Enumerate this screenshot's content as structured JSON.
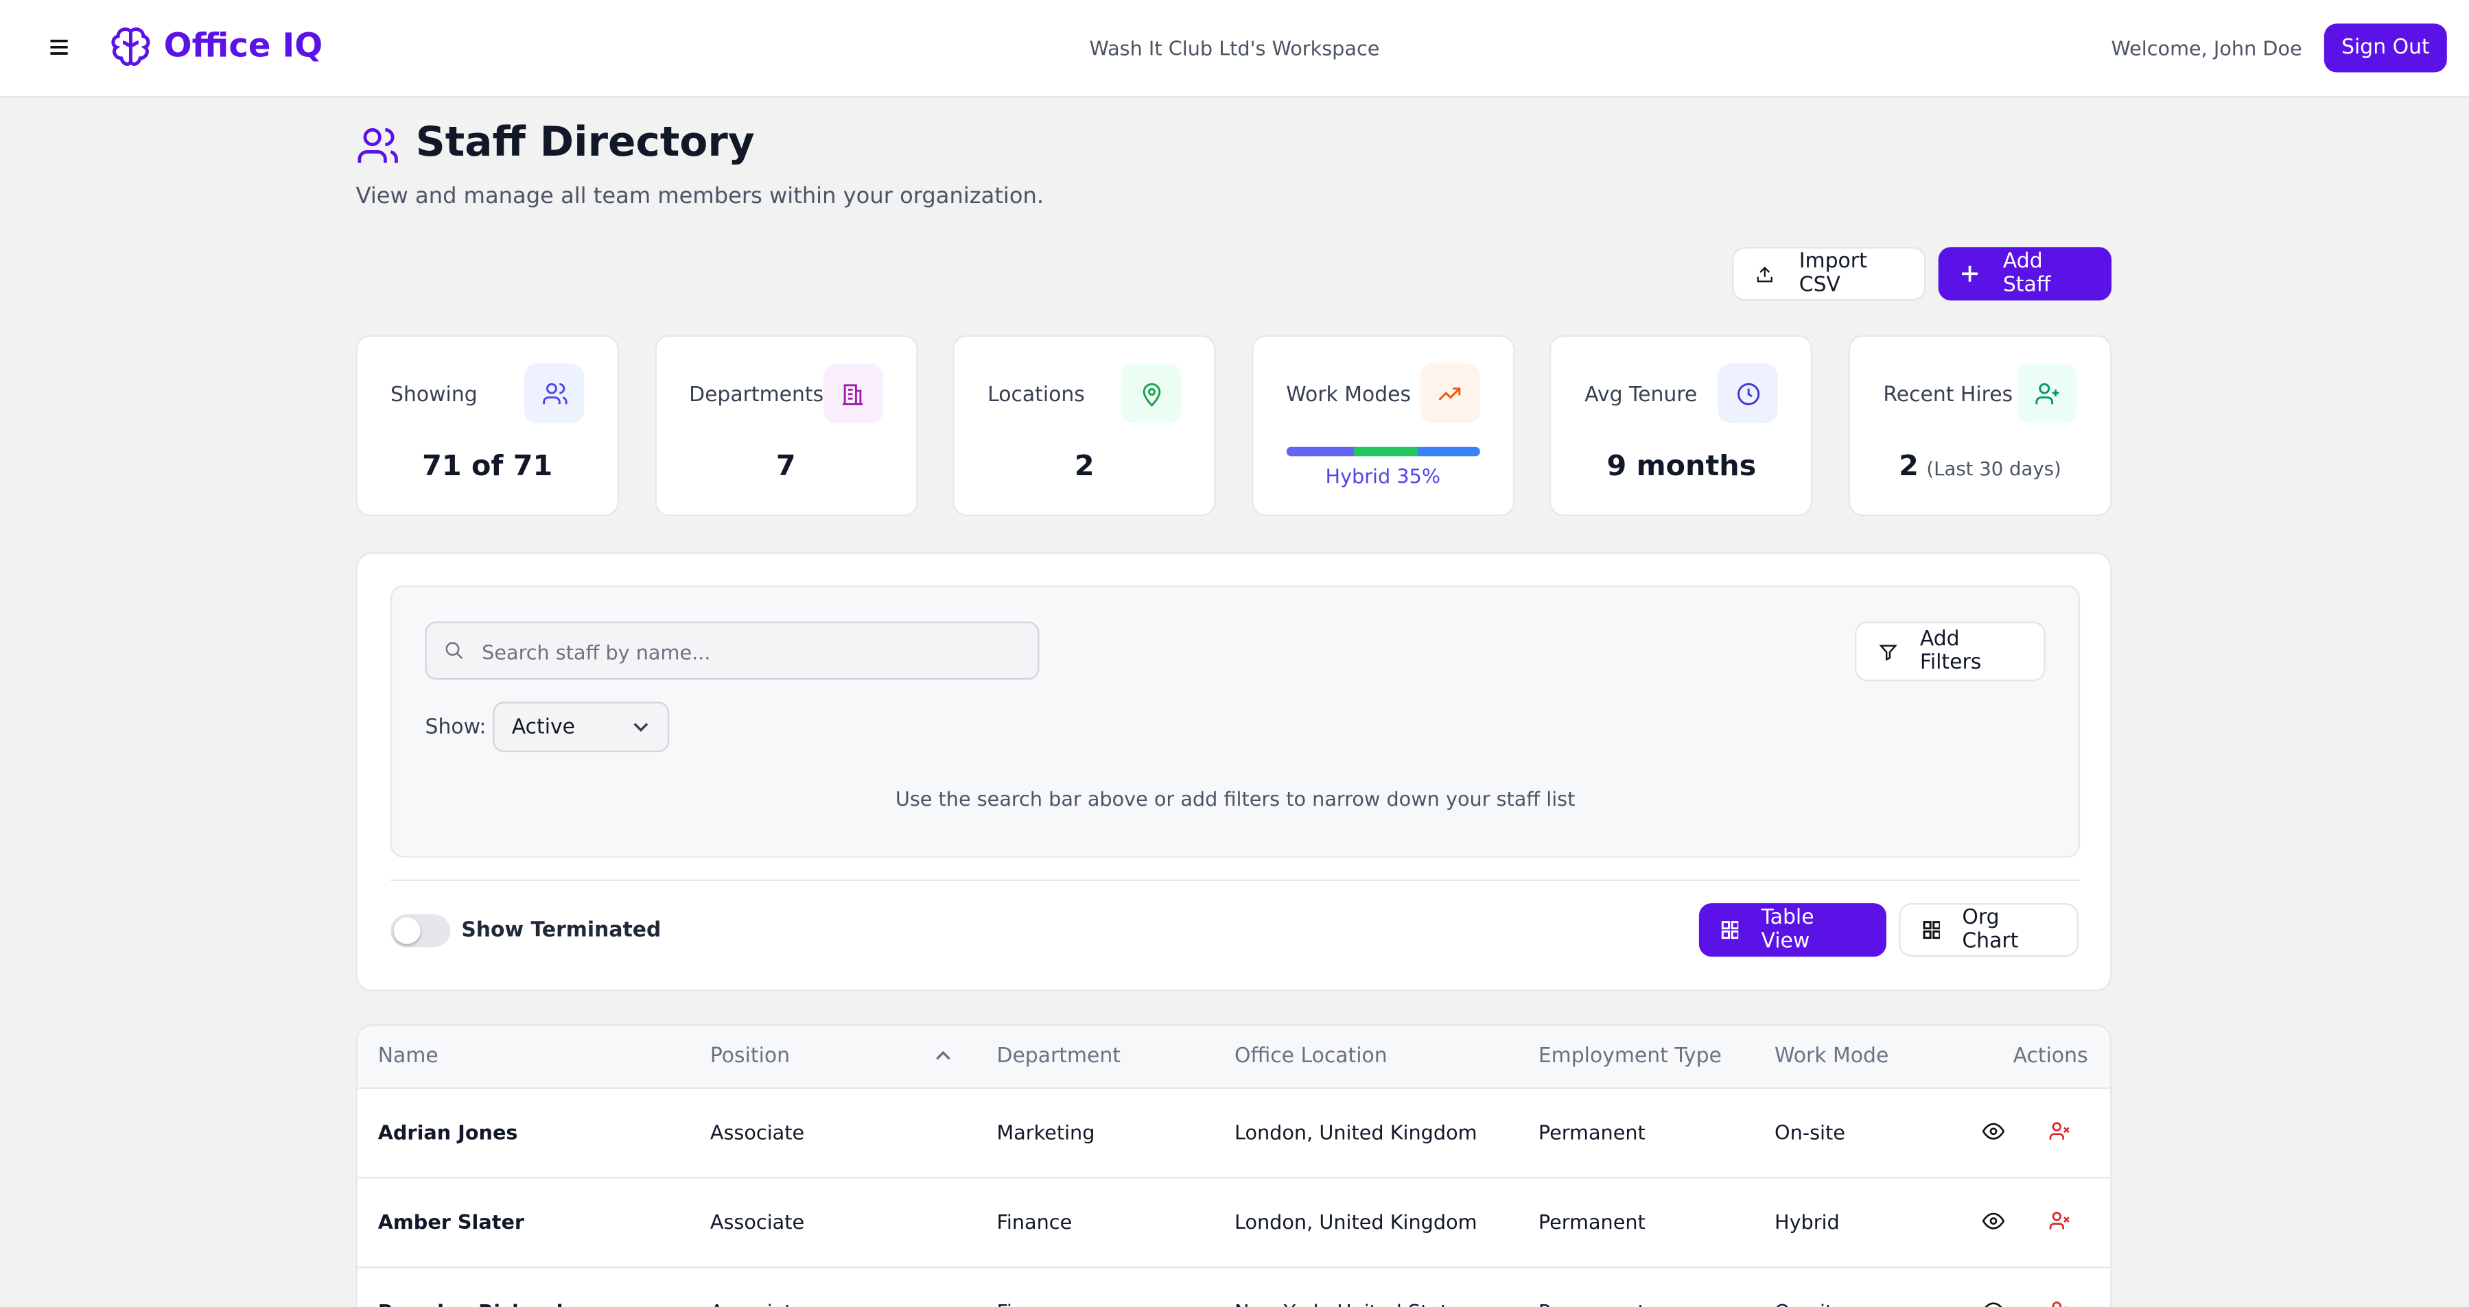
{
  "header": {
    "brand": "Office IQ",
    "workspace": "Wash It Club Ltd's Workspace",
    "welcome": "Welcome, John Doe",
    "sign_out": "Sign Out"
  },
  "page": {
    "title": "Staff Directory",
    "subtitle": "View and manage all team members within your organization.",
    "import_csv": "Import CSV",
    "add_staff": "Add Staff"
  },
  "stats": [
    {
      "label": "Showing",
      "value": "71 of 71"
    },
    {
      "label": "Departments",
      "value": "7"
    },
    {
      "label": "Locations",
      "value": "2"
    },
    {
      "label": "Work Modes",
      "value": "Hybrid 35%",
      "bar": [
        35,
        33,
        32
      ]
    },
    {
      "label": "Avg Tenure",
      "value": "9 months"
    },
    {
      "label": "Recent Hires",
      "value": "2",
      "note": "(Last 30 days)"
    }
  ],
  "filters": {
    "search_placeholder": "Search staff by name...",
    "add_filters": "Add Filters",
    "show_label": "Show:",
    "show_value": "Active",
    "hint": "Use the search bar above or add filters to narrow down your staff list",
    "show_terminated": "Show Terminated",
    "table_view": "Table View",
    "org_chart": "Org Chart"
  },
  "table": {
    "columns": [
      "Name",
      "Position",
      "Department",
      "Office Location",
      "Employment Type",
      "Work Mode",
      "Actions"
    ],
    "rows": [
      [
        "Adrian Jones",
        "Associate",
        "Marketing",
        "London, United Kingdom",
        "Permanent",
        "On-site"
      ],
      [
        "Amber Slater",
        "Associate",
        "Finance",
        "London, United Kingdom",
        "Permanent",
        "Hybrid"
      ],
      [
        "Brandon Richards",
        "Associate",
        "Finance",
        "New York, United States",
        "Permanent",
        "On-site"
      ]
    ]
  }
}
